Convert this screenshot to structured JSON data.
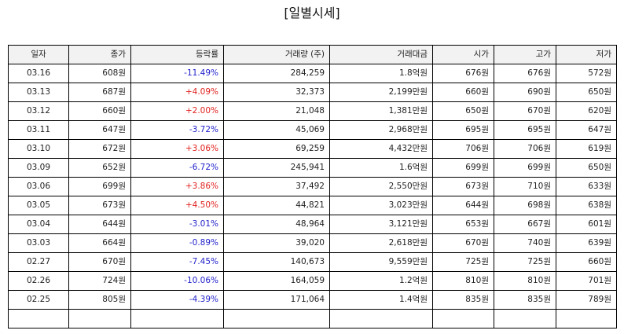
{
  "title": "[일별시세]",
  "headers": [
    "일자",
    "종가",
    "등락률",
    "거래량 (주)",
    "거래대금",
    "시가",
    "고가",
    "저가"
  ],
  "colors": {
    "up": "#e0221f",
    "down": "#2222cc"
  },
  "rows": [
    {
      "date": "03.16",
      "close": "608원",
      "change": "-11.49%",
      "dir": "down",
      "volume": "284,259",
      "amount": "1.8억원",
      "open": "676원",
      "high": "676원",
      "low": "572원"
    },
    {
      "date": "03.13",
      "close": "687원",
      "change": "+4.09%",
      "dir": "up",
      "volume": "32,373",
      "amount": "2,199만원",
      "open": "660원",
      "high": "690원",
      "low": "650원"
    },
    {
      "date": "03.12",
      "close": "660원",
      "change": "+2.00%",
      "dir": "up",
      "volume": "21,048",
      "amount": "1,381만원",
      "open": "650원",
      "high": "670원",
      "low": "620원"
    },
    {
      "date": "03.11",
      "close": "647원",
      "change": "-3.72%",
      "dir": "down",
      "volume": "45,069",
      "amount": "2,968만원",
      "open": "695원",
      "high": "695원",
      "low": "647원"
    },
    {
      "date": "03.10",
      "close": "672원",
      "change": "+3.06%",
      "dir": "up",
      "volume": "69,259",
      "amount": "4,432만원",
      "open": "706원",
      "high": "706원",
      "low": "619원"
    },
    {
      "date": "03.09",
      "close": "652원",
      "change": "-6.72%",
      "dir": "down",
      "volume": "245,941",
      "amount": "1.6억원",
      "open": "699원",
      "high": "699원",
      "low": "650원"
    },
    {
      "date": "03.06",
      "close": "699원",
      "change": "+3.86%",
      "dir": "up",
      "volume": "37,492",
      "amount": "2,550만원",
      "open": "673원",
      "high": "710원",
      "low": "633원"
    },
    {
      "date": "03.05",
      "close": "673원",
      "change": "+4.50%",
      "dir": "up",
      "volume": "44,821",
      "amount": "3,023만원",
      "open": "644원",
      "high": "698원",
      "low": "638원"
    },
    {
      "date": "03.04",
      "close": "644원",
      "change": "-3.01%",
      "dir": "down",
      "volume": "48,964",
      "amount": "3,121만원",
      "open": "653원",
      "high": "667원",
      "low": "601원"
    },
    {
      "date": "03.03",
      "close": "664원",
      "change": "-0.89%",
      "dir": "down",
      "volume": "39,020",
      "amount": "2,618만원",
      "open": "670원",
      "high": "740원",
      "low": "639원"
    },
    {
      "date": "02.27",
      "close": "670원",
      "change": "-7.45%",
      "dir": "down",
      "volume": "140,673",
      "amount": "9,559만원",
      "open": "725원",
      "high": "725원",
      "low": "660원"
    },
    {
      "date": "02.26",
      "close": "724원",
      "change": "-10.06%",
      "dir": "down",
      "volume": "164,059",
      "amount": "1.2억원",
      "open": "810원",
      "high": "810원",
      "low": "701원"
    },
    {
      "date": "02.25",
      "close": "805원",
      "change": "-4.39%",
      "dir": "down",
      "volume": "171,064",
      "amount": "1.4억원",
      "open": "835원",
      "high": "835원",
      "low": "789원"
    }
  ]
}
